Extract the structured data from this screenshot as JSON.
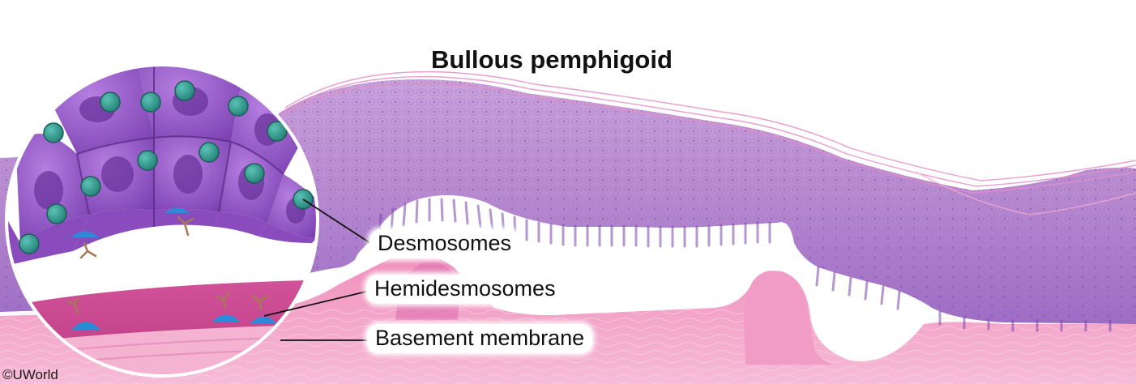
{
  "title": "Bullous pemphigoid",
  "labels": {
    "desmosomes": "Desmosomes",
    "hemidesmosomes": "Hemidesmosomes",
    "basement_membrane": "Basement membrane"
  },
  "credit": "©UWorld",
  "colors": {
    "epidermis": "#b98ad0",
    "epidermis_dark": "#8e5ab8",
    "dermis": "#f2a3c6",
    "dermis_light": "#f8c6dc",
    "cell": "#8d4fc0",
    "cell_nucleus": "#6e3aa3",
    "desmosome": "#2f9b8f",
    "hemidesmosome": "#2e8ad8",
    "basement_membrane": "#c8468e"
  }
}
